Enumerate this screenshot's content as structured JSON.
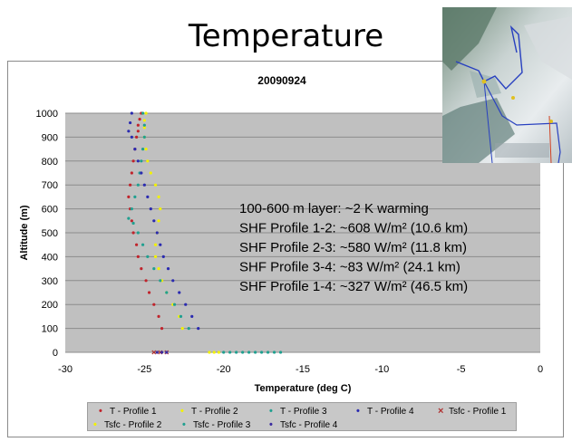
{
  "slide": {
    "title": "Temperature"
  },
  "map_inset": {
    "icon": "map-thumbnail",
    "label": "flight-track map"
  },
  "colors": {
    "plot_bg": "#c0c0c0",
    "grid": "#8c8c8c",
    "T - Profile 1": "#c0242c",
    "T - Profile 2": "#f2f200",
    "T - Profile 3": "#20a090",
    "T - Profile 4": "#2a2ab0",
    "Tsfc - Profile 1": "#b03030",
    "Tsfc - Profile 2": "#f2f200",
    "Tsfc - Profile 3": "#20a090",
    "Tsfc - Profile 4": "#3a2aa0"
  },
  "chart_data": {
    "type": "scatter",
    "title": "20090924",
    "xlabel": "Temperature (deg C)",
    "ylabel": "Altitude (m)",
    "xlim": [
      -30,
      0
    ],
    "ylim": [
      0,
      1000
    ],
    "xticks": [
      "-30",
      "-25",
      "-20",
      "-15",
      "-10",
      "-5",
      "0"
    ],
    "yticks": [
      "0",
      "100",
      "200",
      "300",
      "400",
      "500",
      "600",
      "700",
      "800",
      "900",
      "1000"
    ],
    "grid": "horizontal",
    "legend_position": "bottom",
    "annotations": [
      "100-600 m layer: ~2 K warming",
      "SHF Profile 1-2: ~608 W/m² (10.6 km)",
      "SHF Profile 2-3: ~580 W/m² (11.8 km)",
      "SHF Profile 3-4: ~83 W/m² (24.1 km)",
      "SHF Profile 1-4: ~327 W/m² (46.5 km)"
    ],
    "series": [
      {
        "name": "T - Profile 1",
        "marker": "•",
        "x": [
          -23.9,
          -24.1,
          -24.4,
          -24.7,
          -24.9,
          -25.2,
          -25.4,
          -25.5,
          -25.7,
          -25.8,
          -25.9,
          -26.0,
          -25.9,
          -25.8,
          -25.7,
          -25.6,
          -25.5,
          -25.4,
          -25.4,
          -25.3,
          -25.2
        ],
        "y": [
          100,
          150,
          200,
          250,
          300,
          350,
          400,
          450,
          500,
          550,
          600,
          650,
          700,
          750,
          800,
          850,
          900,
          925,
          950,
          975,
          1000
        ]
      },
      {
        "name": "T - Profile 2",
        "marker": "•",
        "x": [
          -22.6,
          -22.8,
          -23.2,
          -23.6,
          -23.9,
          -24.1,
          -24.3,
          -24.3,
          -24.2,
          -24.1,
          -24.0,
          -24.1,
          -24.3,
          -24.6,
          -24.8,
          -24.9,
          -25.0,
          -25.0,
          -25.0,
          -24.9
        ],
        "y": [
          100,
          150,
          200,
          250,
          300,
          350,
          400,
          450,
          500,
          550,
          600,
          650,
          700,
          750,
          800,
          850,
          900,
          940,
          970,
          1000
        ]
      },
      {
        "name": "T - Profile 3",
        "marker": "•",
        "x": [
          -22.2,
          -22.7,
          -23.1,
          -23.6,
          -24.0,
          -24.4,
          -24.8,
          -25.1,
          -25.4,
          -25.7,
          -26.0,
          -25.8,
          -25.6,
          -25.4,
          -25.3,
          -25.2,
          -25.1,
          -25.0,
          -25.0,
          -25.1
        ],
        "y": [
          100,
          150,
          200,
          250,
          300,
          350,
          400,
          450,
          500,
          540,
          560,
          600,
          650,
          700,
          750,
          800,
          850,
          900,
          950,
          1000
        ]
      },
      {
        "name": "T - Profile 4",
        "marker": "•",
        "x": [
          -21.6,
          -22.0,
          -22.4,
          -22.8,
          -23.2,
          -23.5,
          -23.8,
          -24.0,
          -24.2,
          -24.4,
          -24.6,
          -24.8,
          -25.0,
          -25.2,
          -25.4,
          -25.6,
          -25.8,
          -26.0,
          -25.9,
          -25.8
        ],
        "y": [
          100,
          150,
          200,
          250,
          300,
          350,
          400,
          450,
          500,
          550,
          600,
          650,
          700,
          750,
          800,
          850,
          900,
          925,
          960,
          1000
        ]
      },
      {
        "name": "Tsfc - Profile 1",
        "marker": "×",
        "x": [
          -24.4,
          -24.0,
          -23.6
        ],
        "y": [
          0,
          0,
          0
        ]
      },
      {
        "name": "Tsfc - Profile 2",
        "marker": "•",
        "x": [
          -20.9,
          -20.6,
          -20.3
        ],
        "y": [
          0,
          0,
          0
        ]
      },
      {
        "name": "Tsfc - Profile 3",
        "marker": "•",
        "x": [
          -20.0,
          -19.6,
          -19.2,
          -18.8,
          -18.4,
          -18.0,
          -17.6,
          -17.2,
          -16.8,
          -16.4
        ],
        "y": [
          0,
          0,
          0,
          0,
          0,
          0,
          0,
          0,
          0,
          0
        ]
      },
      {
        "name": "Tsfc - Profile 4",
        "marker": "•",
        "x": [
          -24.2,
          -23.9,
          -23.6
        ],
        "y": [
          0,
          0,
          0
        ]
      }
    ]
  }
}
